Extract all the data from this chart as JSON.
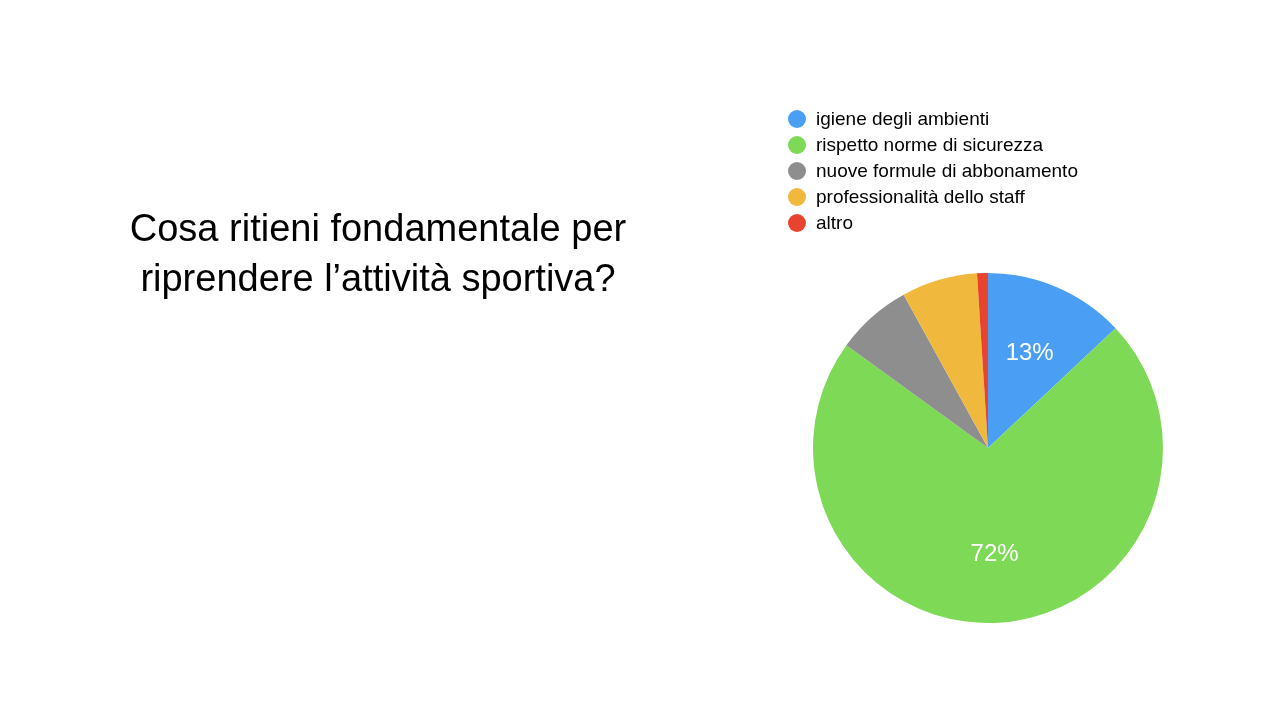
{
  "chart_data": {
    "type": "pie",
    "title": "Cosa ritieni fondamentale per riprendere l’attività sportiva?",
    "categories": [
      "igiene degli ambienti",
      "rispetto norme di sicurezza",
      "nuove formule di abbonamento",
      "professionalità dello staff",
      "altro"
    ],
    "values": [
      13,
      72,
      7,
      7,
      1
    ],
    "colors": [
      "#4a9ff5",
      "#7ed957",
      "#8e8e8e",
      "#f0b93e",
      "#e8432e"
    ],
    "value_labels": [
      "13%",
      "72%",
      null,
      null,
      null
    ],
    "legend": "top"
  }
}
